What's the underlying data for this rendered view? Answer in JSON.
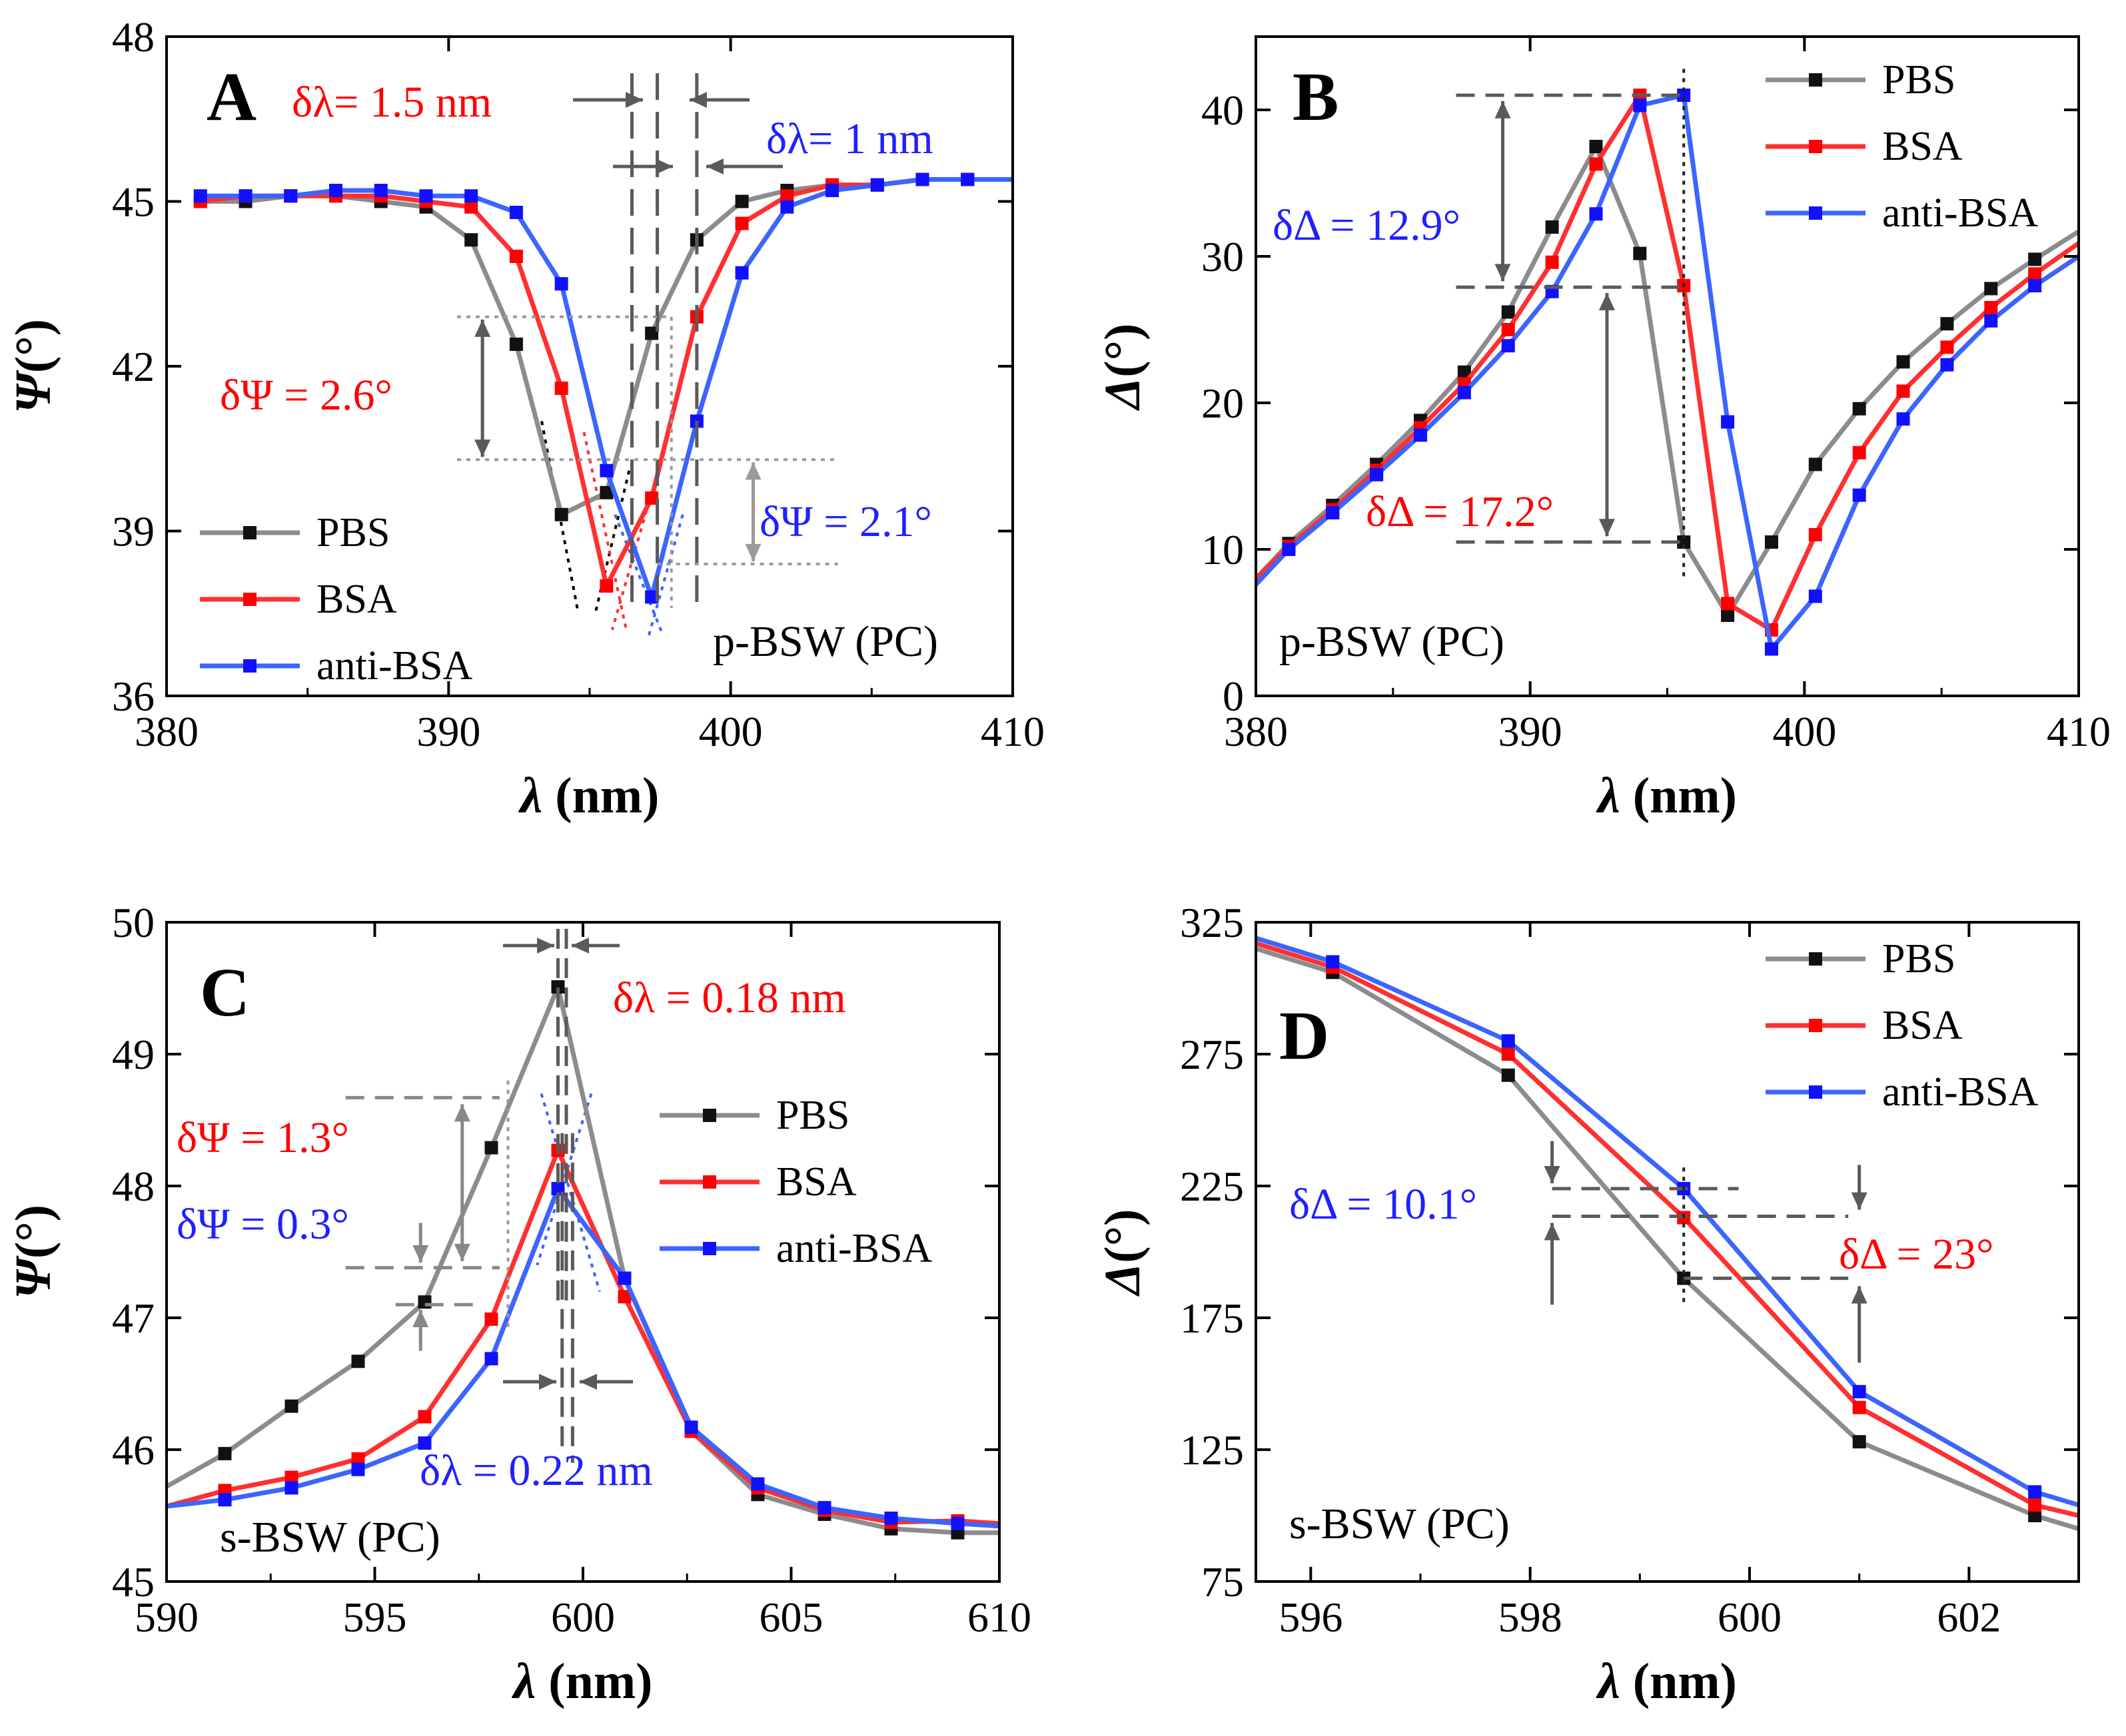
{
  "colors": {
    "PBS": "#8c8c8c",
    "BSA": "#ff3030",
    "anti-BSA": "#3c64ff",
    "text_red": "#ff0000",
    "text_blue": "#2020ff",
    "guide": "#5a5a5a",
    "marker_PBS": "#111111",
    "marker_BSA": "#ff0000",
    "marker_anti": "#1010ff"
  },
  "chart_data": [
    {
      "id": "A",
      "type": "line",
      "panel_label": "A",
      "xlabel": "λ (nm)",
      "ylabel": "Ψ(°)",
      "xlim": [
        380,
        410
      ],
      "ylim": [
        36,
        48
      ],
      "xticks": [
        380,
        390,
        400,
        410
      ],
      "yticks": [
        36,
        39,
        42,
        45,
        48
      ],
      "legend": [
        "PBS",
        "BSA",
        "anti-BSA"
      ],
      "legend_position": "bottom-left",
      "caption": "p-BSW (PC)",
      "series": [
        {
          "name": "PBS",
          "x": [
            381.2,
            382.8,
            384.4,
            386.0,
            387.6,
            389.2,
            390.8,
            392.4,
            394.0,
            395.6,
            397.2,
            398.8,
            400.4,
            402.0,
            403.6,
            405.2,
            406.8,
            408.4,
            410.0
          ],
          "y": [
            45.0,
            45.0,
            45.1,
            45.1,
            45.0,
            44.9,
            44.3,
            42.4,
            39.3,
            39.7,
            42.6,
            44.3,
            45.0,
            45.2,
            45.3,
            45.3,
            45.4,
            45.4,
            45.4
          ]
        },
        {
          "name": "BSA",
          "x": [
            381.2,
            382.8,
            384.4,
            386.0,
            387.6,
            389.2,
            390.8,
            392.4,
            394.0,
            395.6,
            397.2,
            398.8,
            400.4,
            402.0,
            403.6,
            405.2,
            406.8,
            408.4,
            410.0
          ],
          "y": [
            45.0,
            45.1,
            45.1,
            45.1,
            45.1,
            45.0,
            44.9,
            44.0,
            41.6,
            38.0,
            39.6,
            42.9,
            44.6,
            45.1,
            45.3,
            45.3,
            45.4,
            45.4,
            45.4
          ]
        },
        {
          "name": "anti-BSA",
          "x": [
            381.2,
            382.8,
            384.4,
            386.0,
            387.6,
            389.2,
            390.8,
            392.4,
            394.0,
            395.6,
            397.2,
            398.8,
            400.4,
            402.0,
            403.6,
            405.2,
            406.8,
            408.4,
            410.0
          ],
          "y": [
            45.1,
            45.1,
            45.1,
            45.2,
            45.2,
            45.1,
            45.1,
            44.8,
            43.5,
            40.1,
            37.8,
            41.0,
            43.7,
            44.9,
            45.2,
            45.3,
            45.4,
            45.4,
            45.4
          ]
        }
      ],
      "annotations": [
        {
          "text": "δλ= 1.5 nm",
          "color": "red"
        },
        {
          "text": "δλ= 1 nm",
          "color": "blue"
        },
        {
          "text": "δΨ = 2.6°",
          "color": "red"
        },
        {
          "text": "δΨ = 2.1°",
          "color": "blue"
        }
      ]
    },
    {
      "id": "B",
      "type": "line",
      "panel_label": "B",
      "xlabel": "λ (nm)",
      "ylabel": "Δ(°)",
      "xlim": [
        380,
        410
      ],
      "ylim": [
        0,
        45
      ],
      "xticks": [
        380,
        390,
        400,
        410
      ],
      "yticks": [
        0,
        10,
        20,
        30,
        40
      ],
      "legend": [
        "PBS",
        "BSA",
        "anti-BSA"
      ],
      "legend_position": "top-right",
      "caption": "p-BSW (PC)",
      "series": [
        {
          "name": "PBS",
          "x": [
            380.0,
            381.2,
            382.8,
            384.4,
            386.0,
            387.6,
            389.2,
            390.8,
            392.4,
            394.0,
            395.6,
            397.2,
            398.8,
            400.4,
            402.0,
            403.6,
            405.2,
            406.8,
            408.4,
            410.0
          ],
          "y": [
            8.0,
            10.4,
            13.0,
            15.8,
            18.8,
            22.1,
            26.2,
            32.0,
            37.5,
            30.2,
            10.5,
            5.5,
            10.5,
            15.8,
            19.6,
            22.8,
            25.4,
            27.8,
            29.8,
            31.7
          ]
        },
        {
          "name": "BSA",
          "x": [
            380.0,
            381.2,
            382.8,
            384.4,
            386.0,
            387.6,
            389.2,
            390.8,
            392.4,
            394.0,
            395.6,
            397.2,
            398.8,
            400.4,
            402.0,
            403.6,
            405.2,
            406.8,
            408.4,
            410.0
          ],
          "y": [
            8.0,
            10.2,
            12.7,
            15.4,
            18.3,
            21.3,
            25.0,
            29.6,
            36.3,
            41.0,
            28.0,
            6.3,
            4.5,
            11.0,
            16.6,
            20.8,
            23.8,
            26.5,
            28.8,
            30.9
          ]
        },
        {
          "name": "anti-BSA",
          "x": [
            380.0,
            381.2,
            382.8,
            384.4,
            386.0,
            387.6,
            389.2,
            390.8,
            392.4,
            394.0,
            395.6,
            397.2,
            398.8,
            400.4,
            402.0,
            403.6,
            405.2,
            406.8,
            408.4,
            410.0
          ],
          "y": [
            7.6,
            10.0,
            12.5,
            15.1,
            17.8,
            20.7,
            23.9,
            27.6,
            32.9,
            40.3,
            41.0,
            18.7,
            3.2,
            6.8,
            13.7,
            18.9,
            22.6,
            25.6,
            28.0,
            30.0
          ]
        }
      ],
      "annotations": [
        {
          "text": "δΔ = 12.9°",
          "color": "blue"
        },
        {
          "text": "δΔ = 17.2°",
          "color": "red"
        }
      ]
    },
    {
      "id": "C",
      "type": "line",
      "panel_label": "C",
      "xlabel": "λ (nm)",
      "ylabel": "Ψ(°)",
      "xlim": [
        590,
        610
      ],
      "ylim": [
        45,
        50
      ],
      "xticks": [
        590,
        595,
        600,
        605,
        610
      ],
      "yticks": [
        45,
        46,
        47,
        48,
        49,
        50
      ],
      "legend": [
        "PBS",
        "BSA",
        "anti-BSA"
      ],
      "legend_position": "middle-right",
      "caption": "s-BSW (PC)",
      "series": [
        {
          "name": "PBS",
          "x": [
            590.0,
            591.4,
            593.0,
            594.6,
            596.2,
            597.8,
            599.4,
            601.0,
            602.6,
            604.2,
            605.8,
            607.4,
            609.0,
            610.0
          ],
          "y": [
            45.72,
            45.97,
            46.33,
            46.67,
            47.12,
            48.29,
            49.51,
            47.3,
            46.14,
            45.66,
            45.51,
            45.4,
            45.37,
            45.37
          ]
        },
        {
          "name": "BSA",
          "x": [
            590.0,
            591.4,
            593.0,
            594.6,
            596.2,
            597.8,
            599.4,
            601.0,
            602.6,
            604.2,
            605.8,
            607.4,
            609.0,
            610.0
          ],
          "y": [
            45.57,
            45.69,
            45.79,
            45.93,
            46.25,
            46.99,
            48.27,
            47.16,
            46.14,
            45.71,
            45.54,
            45.45,
            45.46,
            45.44
          ]
        },
        {
          "name": "anti-BSA",
          "x": [
            590.0,
            591.4,
            593.0,
            594.6,
            596.2,
            597.8,
            599.4,
            601.0,
            602.6,
            604.2,
            605.8,
            607.4,
            609.0,
            610.0
          ],
          "y": [
            45.57,
            45.62,
            45.71,
            45.85,
            46.05,
            46.69,
            47.98,
            47.3,
            46.17,
            45.74,
            45.56,
            45.48,
            45.44,
            45.42
          ]
        }
      ],
      "annotations": [
        {
          "text": "δλ = 0.18 nm",
          "color": "red"
        },
        {
          "text": "δλ = 0.22 nm",
          "color": "blue"
        },
        {
          "text": "δΨ = 1.3°",
          "color": "red"
        },
        {
          "text": "δΨ = 0.3°",
          "color": "blue"
        }
      ]
    },
    {
      "id": "D",
      "type": "line",
      "panel_label": "D",
      "xlabel": "λ (nm)",
      "ylabel": "Δ(°)",
      "xlim": [
        595.5,
        603.0
      ],
      "ylim": [
        75,
        325
      ],
      "xticks": [
        596,
        598,
        600,
        602
      ],
      "yticks": [
        75,
        125,
        175,
        225,
        275,
        325
      ],
      "legend": [
        "PBS",
        "BSA",
        "anti-BSA"
      ],
      "legend_position": "top-right",
      "caption": "s-BSW (PC)",
      "series": [
        {
          "name": "PBS",
          "x": [
            595.5,
            596.2,
            597.8,
            599.4,
            601.0,
            602.6,
            603.0
          ],
          "y": [
            315,
            306,
            267,
            190,
            128,
            100,
            95
          ]
        },
        {
          "name": "BSA",
          "x": [
            595.5,
            596.2,
            597.8,
            599.4,
            601.0,
            602.6,
            603.0
          ],
          "y": [
            317,
            308,
            275,
            213,
            141,
            104,
            100
          ]
        },
        {
          "name": "anti-BSA",
          "x": [
            595.5,
            596.2,
            597.8,
            599.4,
            601.0,
            602.6,
            603.0
          ],
          "y": [
            319,
            310,
            280,
            224,
            147,
            109,
            104
          ]
        }
      ],
      "annotations": [
        {
          "text": "δΔ = 10.1°",
          "color": "blue"
        },
        {
          "text": "δΔ = 23°",
          "color": "red"
        }
      ]
    }
  ]
}
